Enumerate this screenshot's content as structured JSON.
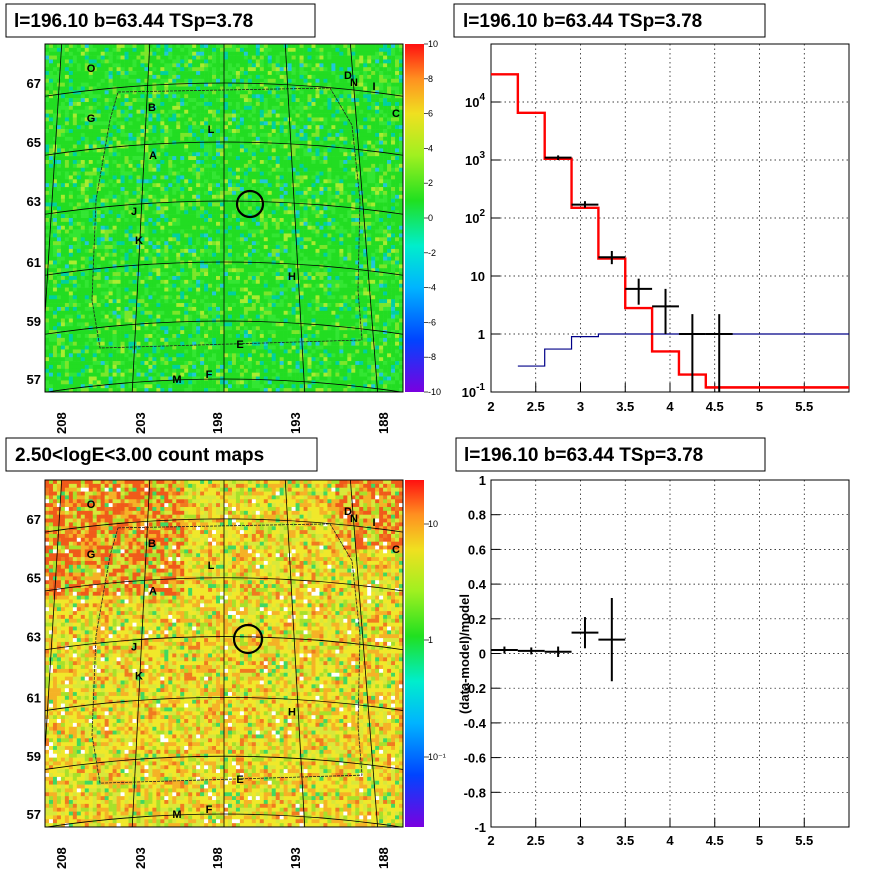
{
  "chart_data": [
    {
      "type": "heatmap",
      "title": "l=196.10 b=63.44 TSp=3.78",
      "x_ticks": [
        "208",
        "203",
        "198",
        "193",
        "188"
      ],
      "y_ticks": [
        "67",
        "65",
        "63",
        "61",
        "59",
        "57"
      ],
      "colorbar_ticks": [
        "10",
        "8",
        "6",
        "4",
        "2",
        "0",
        "-2",
        "-4",
        "-6",
        "-8",
        "-10"
      ],
      "colorbar_range": [
        -10,
        10
      ],
      "sources": [
        "O",
        "D",
        "N",
        "I",
        "B",
        "G",
        "C",
        "L",
        "A",
        "J",
        "K",
        "H",
        "E",
        "F",
        "M"
      ],
      "map_value_typical": 1
    },
    {
      "type": "line",
      "title": "l=196.10 b=63.44 TSp=3.78",
      "yscale": "log",
      "xlim": [
        2,
        6
      ],
      "ylim": [
        0.1,
        100000
      ],
      "x_ticks": [
        "2",
        "2.5",
        "3",
        "3.5",
        "4",
        "4.5",
        "5",
        "5.5"
      ],
      "y_ticks": [
        "10^4",
        "10^3",
        "10^2",
        "10",
        "1",
        "10^-1"
      ],
      "series": [
        {
          "color": "#ff0000",
          "style": "step",
          "edges": [
            2,
            2.3,
            2.6,
            2.9,
            3.2,
            3.5,
            3.8,
            4.1,
            4.4,
            6
          ],
          "values": [
            30000,
            6500,
            1050,
            150,
            20,
            2.8,
            0.5,
            0.2,
            0.12
          ]
        },
        {
          "color": "#000088",
          "style": "step",
          "edges": [
            2.3,
            2.6,
            2.9,
            3.2,
            6
          ],
          "values": [
            0.28,
            0.55,
            0.9,
            1,
            1
          ]
        }
      ],
      "data_points": [
        {
          "x": 2.75,
          "y": 1100,
          "xerr": 0.15,
          "ylo": 1000,
          "yhi": 1200
        },
        {
          "x": 3.05,
          "y": 170,
          "xerr": 0.15,
          "ylo": 150,
          "yhi": 195
        },
        {
          "x": 3.35,
          "y": 21,
          "xerr": 0.15,
          "ylo": 16,
          "yhi": 27
        },
        {
          "x": 3.65,
          "y": 6,
          "xerr": 0.15,
          "ylo": 3.2,
          "yhi": 9
        },
        {
          "x": 3.95,
          "y": 3,
          "xerr": 0.15,
          "ylo": 1,
          "yhi": 6
        },
        {
          "x": 4.25,
          "y": 1,
          "xerr": 0.15,
          "ylo": 0.1,
          "yhi": 2.2
        },
        {
          "x": 4.55,
          "y": 1,
          "xerr": 0.15,
          "ylo": 0.1,
          "yhi": 2.2
        }
      ]
    },
    {
      "type": "heatmap",
      "title": "2.50<logE<3.00 count maps",
      "x_ticks": [
        "208",
        "203",
        "198",
        "193",
        "188"
      ],
      "y_ticks": [
        "67",
        "65",
        "63",
        "61",
        "59",
        "57"
      ],
      "colorbar_ticks": [
        "10",
        "1",
        "10^-1"
      ],
      "colorbar_scale": "log",
      "sources": [
        "O",
        "D",
        "N",
        "I",
        "B",
        "G",
        "C",
        "L",
        "A",
        "J",
        "K",
        "H",
        "E",
        "F",
        "M"
      ]
    },
    {
      "type": "scatter",
      "title": "l=196.10 b=63.44 TSp=3.78",
      "ylabel": "(data-model)/model",
      "xlim": [
        2,
        6
      ],
      "ylim": [
        -1,
        1
      ],
      "x_ticks": [
        "2",
        "2.5",
        "3",
        "3.5",
        "4",
        "4.5",
        "5",
        "5.5"
      ],
      "y_ticks": [
        "1",
        "0.8",
        "0.6",
        "0.4",
        "0.2",
        "0",
        "-0.2",
        "-0.4",
        "-0.6",
        "-0.8",
        "-1"
      ],
      "points": [
        {
          "x": 2.15,
          "y": 0.02,
          "xerr": 0.15,
          "yerr": 0.02
        },
        {
          "x": 2.45,
          "y": 0.015,
          "xerr": 0.15,
          "yerr": 0.02
        },
        {
          "x": 2.75,
          "y": 0.01,
          "xerr": 0.15,
          "yerr": 0.03
        },
        {
          "x": 3.05,
          "y": 0.12,
          "xerr": 0.15,
          "yerr": 0.09
        },
        {
          "x": 3.35,
          "y": 0.08,
          "xerr": 0.15,
          "yerr": 0.24
        }
      ]
    }
  ]
}
